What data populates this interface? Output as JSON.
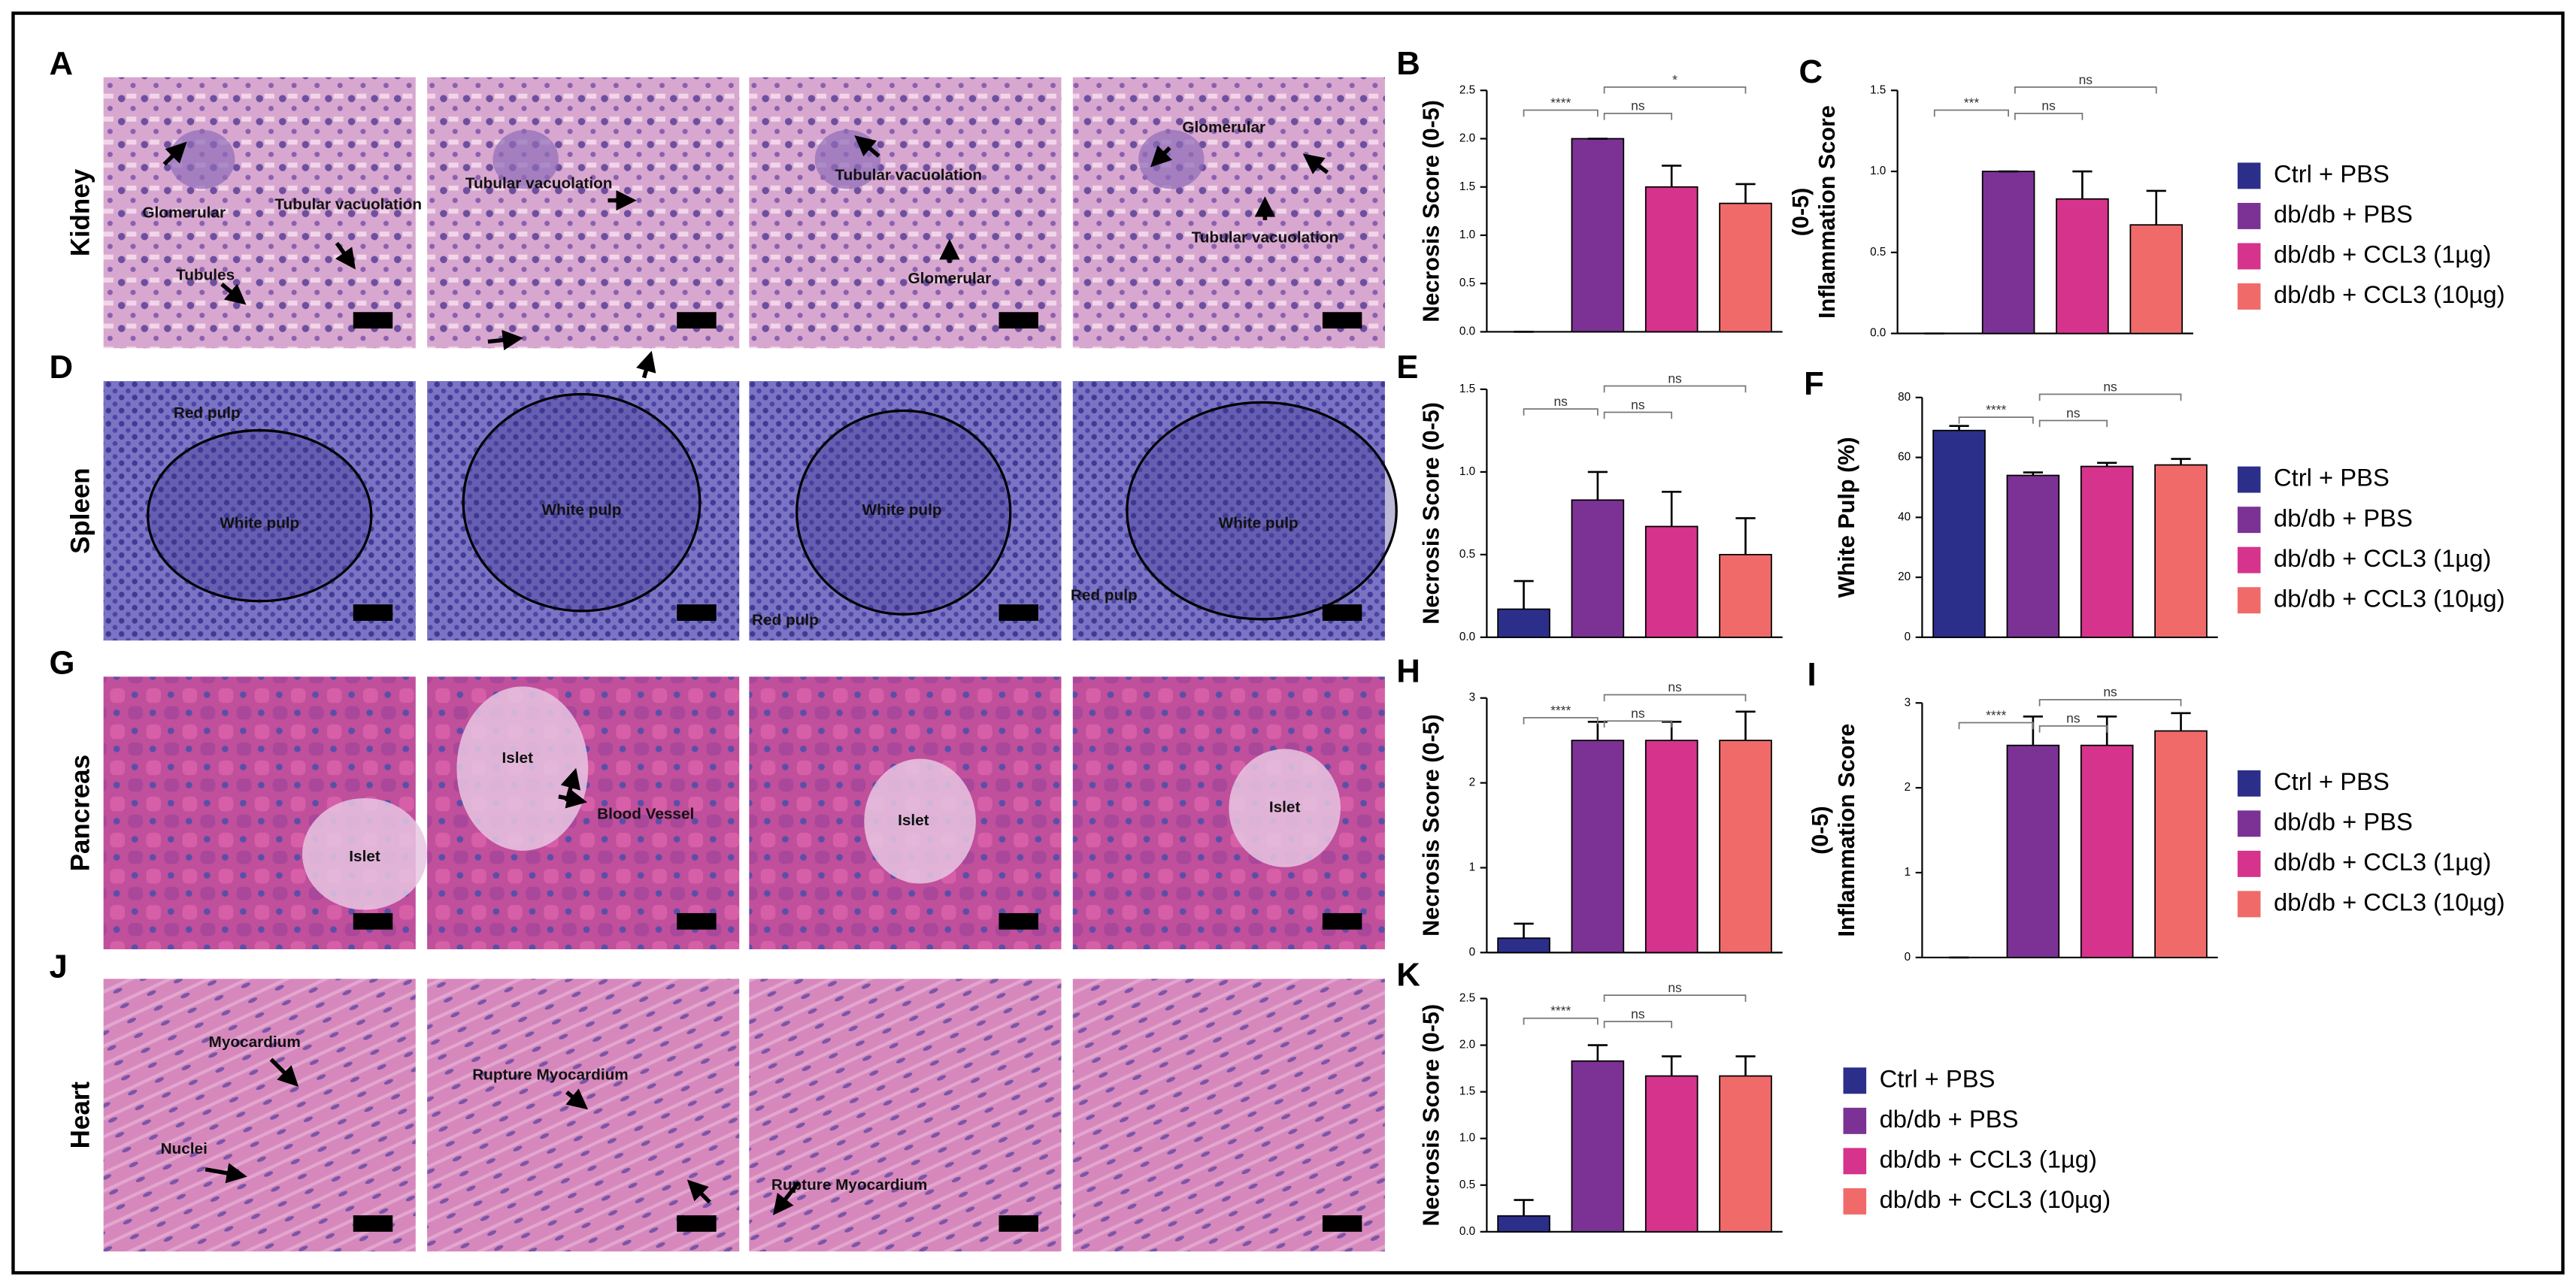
{
  "histology": [
    {
      "panel": "A",
      "tissue": "Kidney",
      "images": [
        [
          "Glomerular",
          "Tubular vacuolation",
          "Tubules"
        ],
        [
          "Tubular vacuolation"
        ],
        [
          "Tubular vacuolation",
          "Glomerular"
        ],
        [
          "Glomerular",
          "Tubular vacuolation"
        ]
      ]
    },
    {
      "panel": "D",
      "tissue": "Spleen",
      "images": [
        [
          "Red pulp",
          "White pulp"
        ],
        [
          "White pulp"
        ],
        [
          "White pulp",
          "Red pulp"
        ],
        [
          "White pulp",
          "Red pulp"
        ]
      ]
    },
    {
      "panel": "G",
      "tissue": "Pancreas",
      "images": [
        [
          "Islet"
        ],
        [
          "Islet",
          "Blood Vessel"
        ],
        [
          "Islet"
        ],
        [
          "Islet"
        ]
      ]
    },
    {
      "panel": "J",
      "tissue": "Heart",
      "images": [
        [
          "Myocardium",
          "Nuclei"
        ],
        [
          "Rupture Myocardium"
        ],
        [
          "Rupture Myocardium"
        ],
        []
      ]
    }
  ],
  "legends": [
    [
      {
        "name": "Ctrl + PBS",
        "color": "#2b2f8a"
      },
      {
        "name": "db/db + PBS",
        "color": "#7b3294"
      },
      {
        "name": "db/db + CCL3 (1µg)",
        "color": "#d6338c"
      },
      {
        "name": "db/db + CCL3 (10µg)",
        "color": "#f06a6a"
      }
    ],
    [
      {
        "name": "Ctrl + PBS",
        "color": "#2b2f8a"
      },
      {
        "name": "db/db + PBS",
        "color": "#7b3294"
      },
      {
        "name": "db/db + CCL3 (1µg)",
        "color": "#d6338c"
      },
      {
        "name": "db/db + CCL3 (10µg)",
        "color": "#f06a6a"
      }
    ],
    [
      {
        "name": "Ctrl + PBS",
        "color": "#2b2f8a"
      },
      {
        "name": "db/db + PBS",
        "color": "#7b3294"
      },
      {
        "name": "db/db + CCL3 (1µg)",
        "color": "#d6338c"
      },
      {
        "name": "db/db + CCL3 (10µg)",
        "color": "#f06a6a"
      }
    ],
    [
      {
        "name": "Ctrl + PBS",
        "color": "#2b2f8a"
      },
      {
        "name": "db/db + PBS",
        "color": "#7b3294"
      },
      {
        "name": "db/db + CCL3 (1µg)",
        "color": "#d6338c"
      },
      {
        "name": "db/db + CCL3 (10µg)",
        "color": "#f06a6a"
      }
    ]
  ],
  "chart_data": [
    {
      "type": "bar",
      "panel": "B",
      "ylabel": [
        "Necrosis Score (0-5)"
      ],
      "ylim": [
        0,
        2.5
      ],
      "yticks": [
        {
          "value": 0,
          "label": "0.0"
        },
        {
          "value": 0.5,
          "label": "0.5"
        },
        {
          "value": 1,
          "label": "1.0"
        },
        {
          "value": 1.5,
          "label": "1.5"
        },
        {
          "value": 2,
          "label": "2.0"
        },
        {
          "value": 2.5,
          "label": "2.5"
        }
      ],
      "categories": [
        null,
        null,
        null,
        null
      ],
      "values": [
        0,
        2.0,
        1.5,
        1.33
      ],
      "errors": [
        0,
        0,
        0.22,
        0.2
      ],
      "colors": [
        "#2b2f8a",
        "#7b3294",
        "#d6338c",
        "#f06a6a"
      ],
      "annotations": [
        "****",
        "ns",
        "*"
      ]
    },
    {
      "type": "bar",
      "panel": "C",
      "ylabel": [
        "Inflammation Score",
        "(0-5)"
      ],
      "ylim": [
        0,
        1.5
      ],
      "yticks": [
        {
          "value": 0,
          "label": "0.0"
        },
        {
          "value": 0.5,
          "label": "0.5"
        },
        {
          "value": 1,
          "label": "1.0"
        },
        {
          "value": 1.5,
          "label": "1.5"
        }
      ],
      "categories": [
        null,
        null,
        null,
        null
      ],
      "values": [
        0,
        1.0,
        0.83,
        0.67
      ],
      "errors": [
        0,
        0,
        0.17,
        0.21
      ],
      "colors": [
        "#2b2f8a",
        "#7b3294",
        "#d6338c",
        "#f06a6a"
      ],
      "annotations": [
        "***",
        "ns",
        "ns"
      ]
    },
    {
      "type": "bar",
      "panel": "E",
      "ylabel": [
        "Necrosis Score (0-5)"
      ],
      "ylim": [
        0,
        1.5
      ],
      "yticks": [
        {
          "value": 0,
          "label": "0.0"
        },
        {
          "value": 0.5,
          "label": "0.5"
        },
        {
          "value": 1,
          "label": "1.0"
        },
        {
          "value": 1.5,
          "label": "1.5"
        }
      ],
      "categories": [
        null,
        null,
        null,
        null
      ],
      "values": [
        0.17,
        0.83,
        0.67,
        0.5
      ],
      "errors": [
        0.17,
        0.17,
        0.21,
        0.22
      ],
      "colors": [
        "#2b2f8a",
        "#7b3294",
        "#d6338c",
        "#f06a6a"
      ],
      "annotations": [
        "ns",
        "ns",
        "ns"
      ]
    },
    {
      "type": "bar",
      "panel": "F",
      "ylabel": [
        "White Pulp (%)"
      ],
      "ylim": [
        0,
        80
      ],
      "yticks": [
        0,
        20,
        40,
        60,
        80
      ],
      "categories": [
        null,
        null,
        null,
        null
      ],
      "values": [
        69,
        54,
        57,
        57.5
      ],
      "errors": [
        1.5,
        1,
        1.2,
        2
      ],
      "colors": [
        "#2b2f8a",
        "#7b3294",
        "#d6338c",
        "#f06a6a"
      ],
      "annotations": [
        "****",
        "ns",
        "ns"
      ]
    },
    {
      "type": "bar",
      "panel": "H",
      "ylabel": [
        "Necrosis Score (0-5)"
      ],
      "ylim": [
        0,
        3
      ],
      "yticks": [
        0,
        1,
        2,
        3
      ],
      "categories": [
        null,
        null,
        null,
        null
      ],
      "values": [
        0.17,
        2.5,
        2.5,
        2.5
      ],
      "errors": [
        0.17,
        0.22,
        0.22,
        0.34
      ],
      "colors": [
        "#2b2f8a",
        "#7b3294",
        "#d6338c",
        "#f06a6a"
      ],
      "annotations": [
        "****",
        "ns",
        "ns"
      ]
    },
    {
      "type": "bar",
      "panel": "I",
      "ylabel": [
        "Inflammation Score",
        "(0-5)"
      ],
      "ylim": [
        0,
        3
      ],
      "yticks": [
        0,
        1,
        2,
        3
      ],
      "categories": [
        null,
        null,
        null,
        null
      ],
      "values": [
        0,
        2.5,
        2.5,
        2.67
      ],
      "errors": [
        0,
        0.34,
        0.34,
        0.21
      ],
      "colors": [
        "#2b2f8a",
        "#7b3294",
        "#d6338c",
        "#f06a6a"
      ],
      "annotations": [
        "****",
        "ns",
        "ns"
      ]
    },
    {
      "type": "bar",
      "panel": "K",
      "ylabel": [
        "Necrosis Score (0-5)"
      ],
      "ylim": [
        0,
        2.5
      ],
      "yticks": [
        {
          "value": 0,
          "label": "0.0"
        },
        {
          "value": 0.5,
          "label": "0.5"
        },
        {
          "value": 1,
          "label": "1.0"
        },
        {
          "value": 1.5,
          "label": "1.5"
        },
        {
          "value": 2,
          "label": "2.0"
        },
        {
          "value": 2.5,
          "label": "2.5"
        }
      ],
      "categories": [
        null,
        null,
        null,
        null
      ],
      "values": [
        0.17,
        1.83,
        1.67,
        1.67
      ],
      "errors": [
        0.17,
        0.17,
        0.21,
        0.21
      ],
      "colors": [
        "#2b2f8a",
        "#7b3294",
        "#d6338c",
        "#f06a6a"
      ],
      "annotations": [
        "****",
        "ns",
        "ns"
      ]
    }
  ]
}
